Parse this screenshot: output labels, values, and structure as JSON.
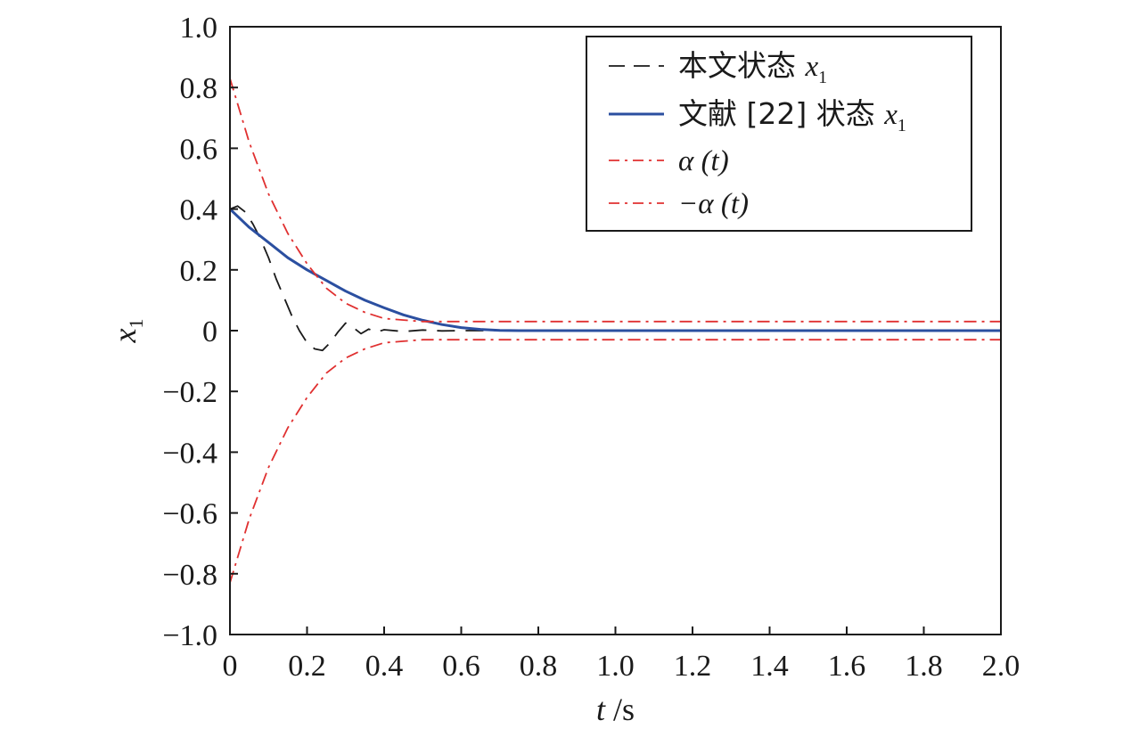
{
  "chart_data": {
    "type": "line",
    "xlabel": "t /s",
    "ylabel": "x1",
    "xlim": [
      0,
      2.0
    ],
    "ylim": [
      -1.0,
      1.0
    ],
    "x_ticks": [
      0,
      0.2,
      0.4,
      0.6,
      0.8,
      1.0,
      1.2,
      1.4,
      1.6,
      1.8,
      2.0
    ],
    "x_tick_labels": [
      "0",
      "0.2",
      "0.4",
      "0.6",
      "0.8",
      "1.0",
      "1.2",
      "1.4",
      "1.6",
      "1.8",
      "2.0"
    ],
    "y_ticks": [
      1.0,
      0.8,
      0.6,
      0.4,
      0.2,
      0,
      -0.2,
      -0.4,
      -0.6,
      -0.8,
      -1.0
    ],
    "y_tick_labels": [
      "1.0",
      "0.8",
      "0.6",
      "0.4",
      "0.2",
      "0",
      "−0.2",
      "−0.4",
      "−0.6",
      "−0.8",
      "−1.0"
    ],
    "grid": false,
    "legend_position": "top-right",
    "series": [
      {
        "name": "本文状态 x1",
        "legend_text": "本文状态",
        "legend_var": "x",
        "legend_sub": "1",
        "color": "#1a1a1a",
        "style": "dashed",
        "x": [
          0,
          0.02,
          0.04,
          0.06,
          0.08,
          0.1,
          0.12,
          0.14,
          0.16,
          0.18,
          0.2,
          0.22,
          0.24,
          0.26,
          0.28,
          0.3,
          0.32,
          0.34,
          0.36,
          0.38,
          0.4,
          0.45,
          0.5,
          0.55,
          0.6,
          0.7,
          0.8,
          1.0,
          1.5,
          2.0
        ],
        "y": [
          0.4,
          0.41,
          0.39,
          0.35,
          0.3,
          0.24,
          0.17,
          0.11,
          0.05,
          0.0,
          -0.04,
          -0.06,
          -0.065,
          -0.04,
          -0.005,
          0.025,
          0.01,
          -0.01,
          0.005,
          -0.005,
          0.003,
          -0.003,
          0.002,
          -0.001,
          0,
          0,
          0,
          0,
          0,
          0
        ]
      },
      {
        "name": "文献 [22] 状态 x1",
        "legend_text": "文献 [22] 状态",
        "legend_var": "x",
        "legend_sub": "1",
        "color": "#2b4fa0",
        "style": "solid",
        "x": [
          0,
          0.05,
          0.1,
          0.15,
          0.2,
          0.25,
          0.3,
          0.35,
          0.4,
          0.45,
          0.5,
          0.55,
          0.6,
          0.65,
          0.7,
          0.75,
          0.8,
          1.0,
          1.5,
          2.0
        ],
        "y": [
          0.4,
          0.34,
          0.29,
          0.24,
          0.2,
          0.165,
          0.13,
          0.1,
          0.075,
          0.052,
          0.034,
          0.02,
          0.01,
          0.004,
          0.001,
          0.0,
          0,
          0,
          0,
          0
        ]
      },
      {
        "name": "α (t)",
        "legend_text": "α (t)",
        "color": "#e03030",
        "style": "dashdot",
        "x": [
          0,
          0.05,
          0.1,
          0.15,
          0.2,
          0.25,
          0.3,
          0.35,
          0.4,
          0.45,
          0.5,
          0.6,
          0.8,
          1.0,
          1.5,
          2.0
        ],
        "y": [
          0.83,
          0.62,
          0.45,
          0.32,
          0.22,
          0.14,
          0.09,
          0.06,
          0.04,
          0.035,
          0.03,
          0.03,
          0.03,
          0.03,
          0.03,
          0.03
        ]
      },
      {
        "name": "−α (t)",
        "legend_text": "−α (t)",
        "color": "#e03030",
        "style": "dashdot",
        "x": [
          0,
          0.05,
          0.1,
          0.15,
          0.2,
          0.25,
          0.3,
          0.35,
          0.4,
          0.45,
          0.5,
          0.6,
          0.8,
          1.0,
          1.5,
          2.0
        ],
        "y": [
          -0.83,
          -0.62,
          -0.45,
          -0.32,
          -0.22,
          -0.14,
          -0.09,
          -0.06,
          -0.04,
          -0.035,
          -0.03,
          -0.03,
          -0.03,
          -0.03,
          -0.03,
          -0.03
        ]
      }
    ]
  }
}
